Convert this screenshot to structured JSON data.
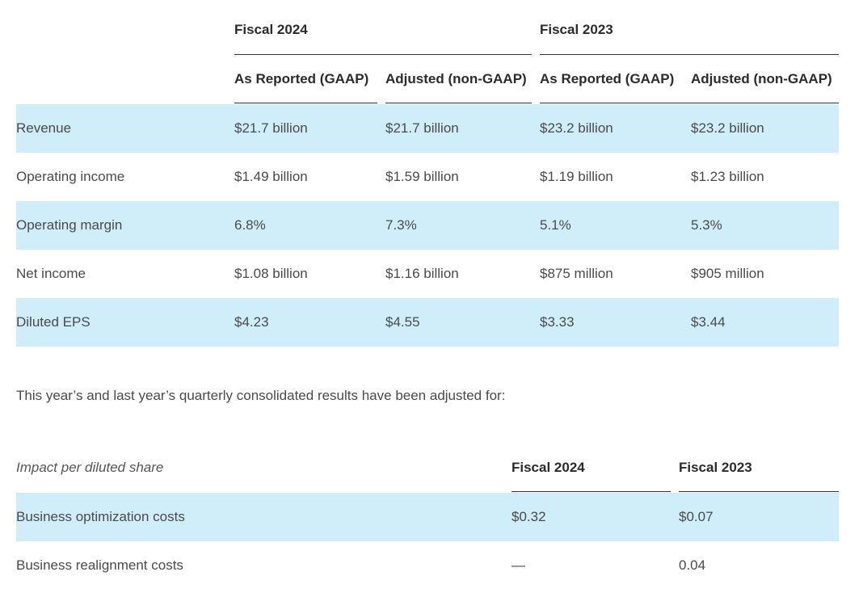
{
  "table1": {
    "year_headers": [
      "Fiscal 2024",
      "Fiscal 2023"
    ],
    "sub_headers": [
      "As Reported (GAAP)",
      "Adjusted (non-GAAP)",
      "As Reported (GAAP)",
      "Adjusted (non-GAAP)"
    ],
    "rows": [
      {
        "label": "Revenue",
        "values": [
          "$21.7 billion",
          "$21.7 billion",
          "$23.2 billion",
          "$23.2 billion"
        ]
      },
      {
        "label": "Operating income",
        "values": [
          "$1.49 billion",
          "$1.59 billion",
          "$1.19 billion",
          "$1.23 billion"
        ]
      },
      {
        "label": "Operating margin",
        "values": [
          "6.8%",
          "7.3%",
          "5.1%",
          "5.3%"
        ]
      },
      {
        "label": "Net income",
        "values": [
          "$1.08 billion",
          "$1.16 billion",
          "$875 million",
          "$905 million"
        ]
      },
      {
        "label": "Diluted EPS",
        "values": [
          "$4.23",
          "$4.55",
          "$3.33",
          "$3.44"
        ]
      }
    ]
  },
  "paragraph": "This year’s and last year’s quarterly consolidated results have been adjusted for:",
  "table2": {
    "label_header": "Impact per diluted share",
    "year_headers": [
      "Fiscal 2024",
      "Fiscal 2023"
    ],
    "rows": [
      {
        "label": "Business optimization costs",
        "values": [
          "$0.32",
          "$0.07"
        ]
      },
      {
        "label": "Business realignment costs",
        "values": [
          "—",
          "0.04"
        ]
      }
    ]
  },
  "colors": {
    "band": "#cfeefa",
    "rule": "#333333",
    "text": "#4a4a4a",
    "header": "#2b2b2b"
  }
}
